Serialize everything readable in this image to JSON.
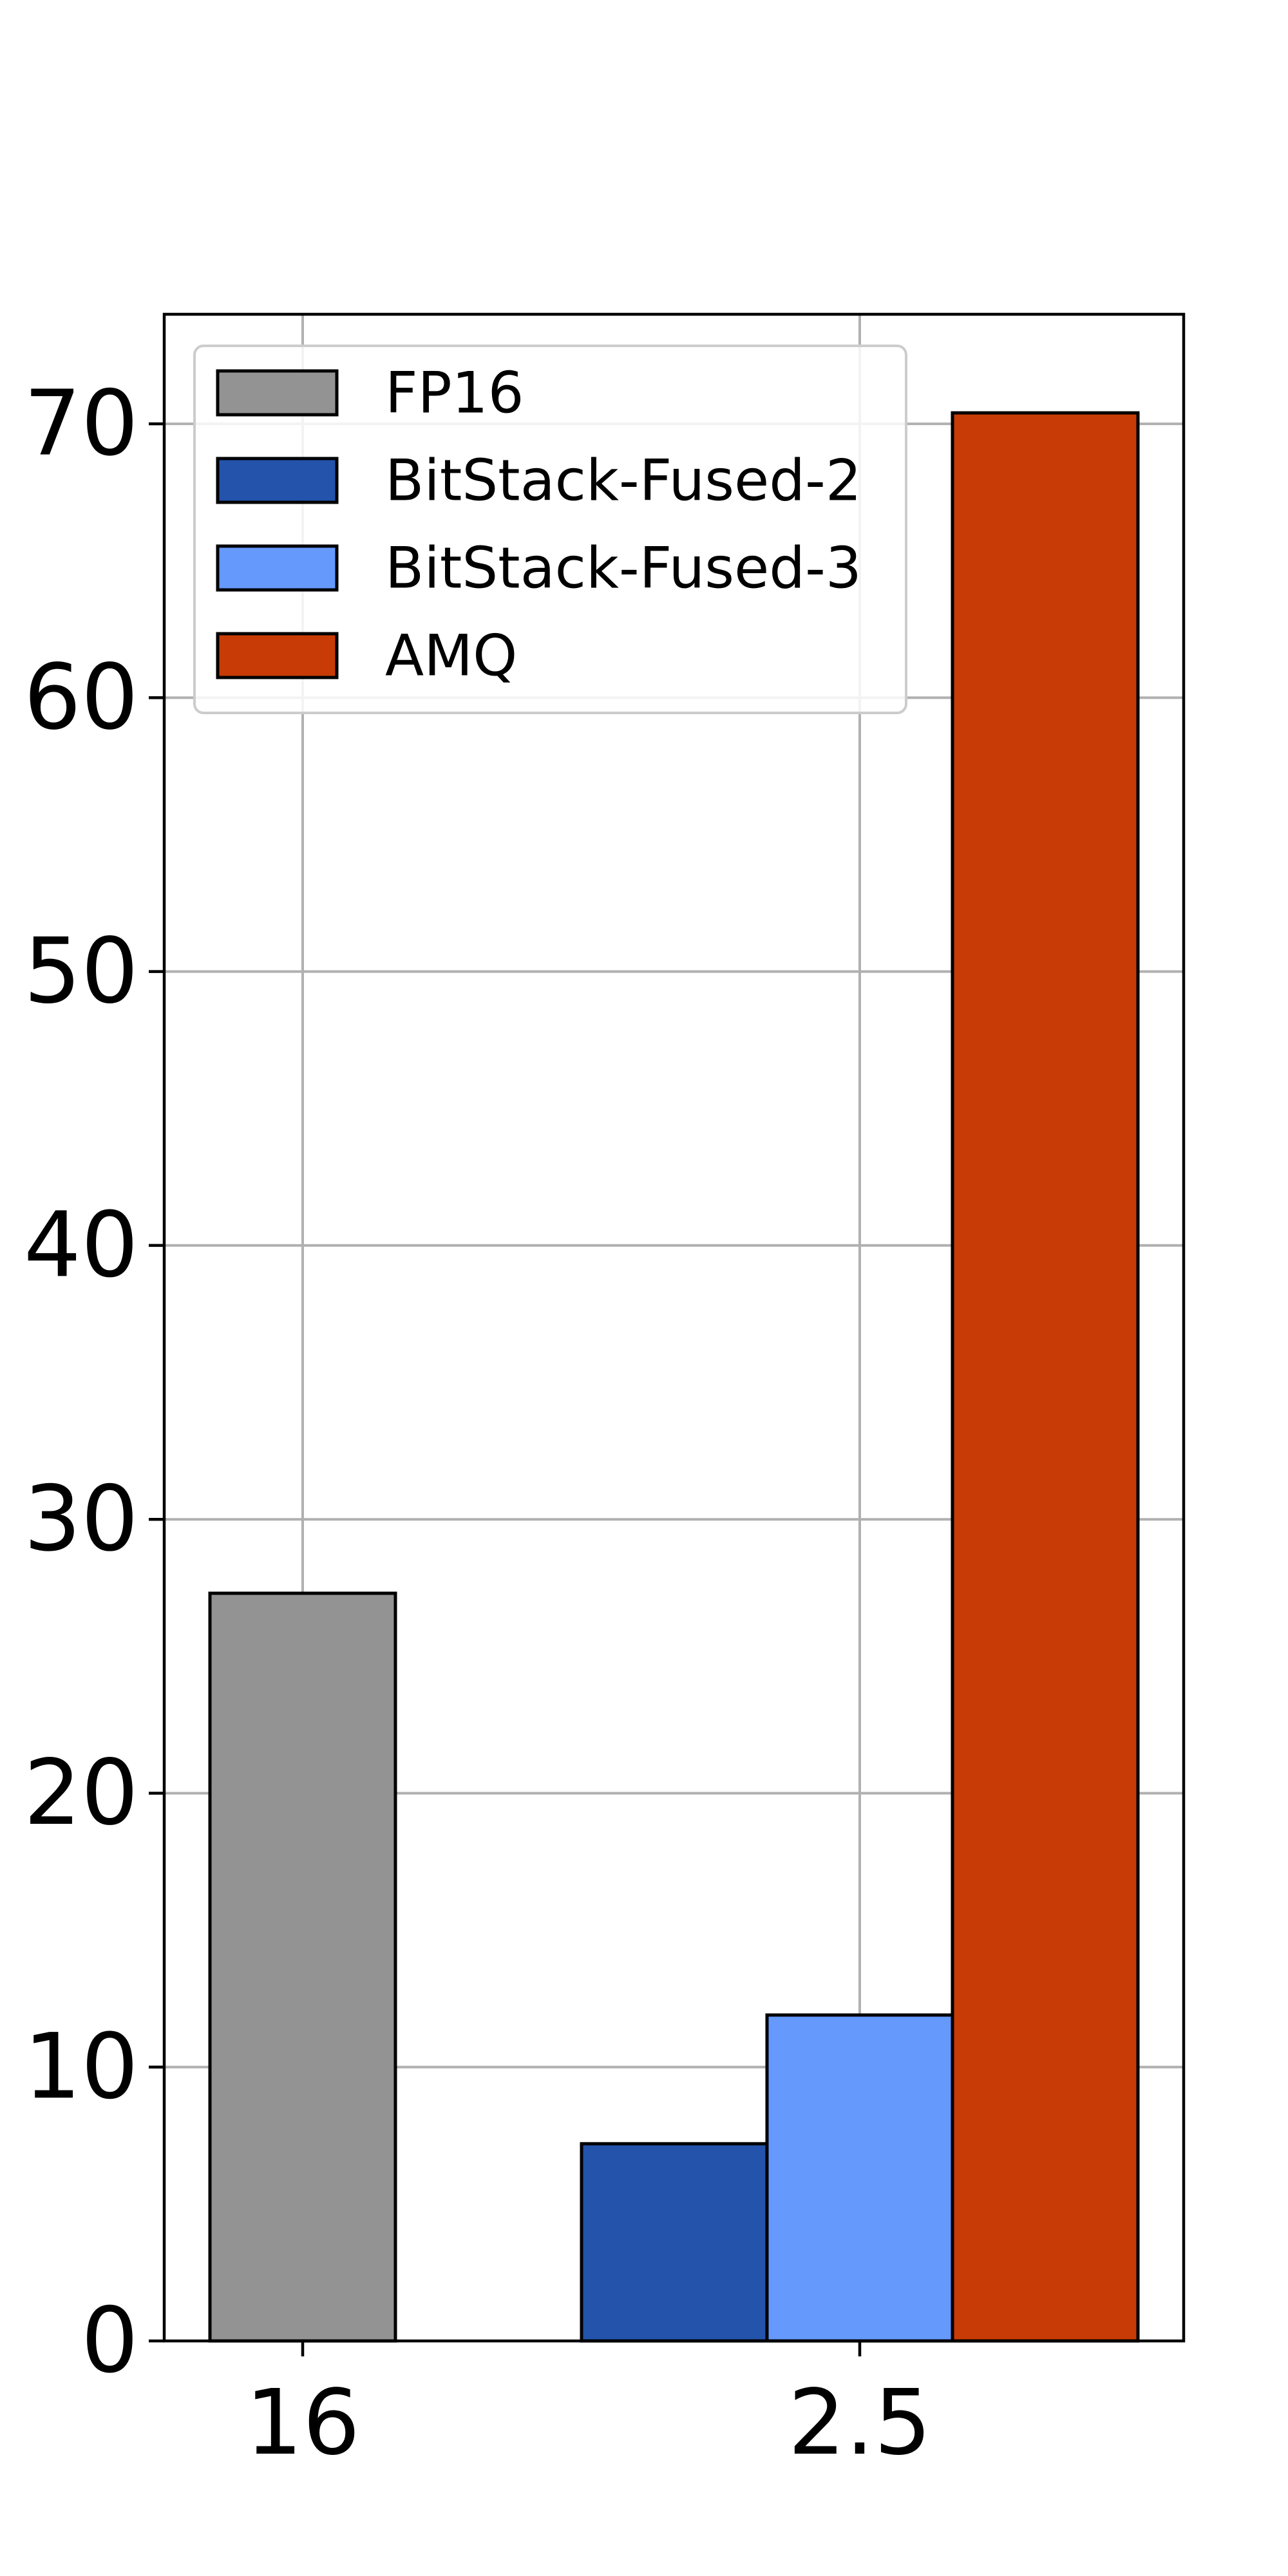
{
  "chart_data": {
    "type": "bar",
    "categories": [
      "16",
      "2.5"
    ],
    "series": [
      {
        "name": "FP16",
        "color": "#939393",
        "values": [
          27.3,
          null
        ]
      },
      {
        "name": "BitStack-Fused-2",
        "color": "#2353ab",
        "values": [
          null,
          7.2
        ]
      },
      {
        "name": "BitStack-Fused-3",
        "color": "#6599fc",
        "values": [
          null,
          11.9
        ]
      },
      {
        "name": "AMQ",
        "color": "#c83b06",
        "values": [
          null,
          70.4
        ]
      }
    ],
    "ylim": [
      0,
      74
    ],
    "yticks": [
      0,
      10,
      20,
      30,
      40,
      50,
      60,
      70
    ],
    "grid": true,
    "legend_position": "top-left",
    "title": "",
    "xlabel": "",
    "ylabel": ""
  }
}
